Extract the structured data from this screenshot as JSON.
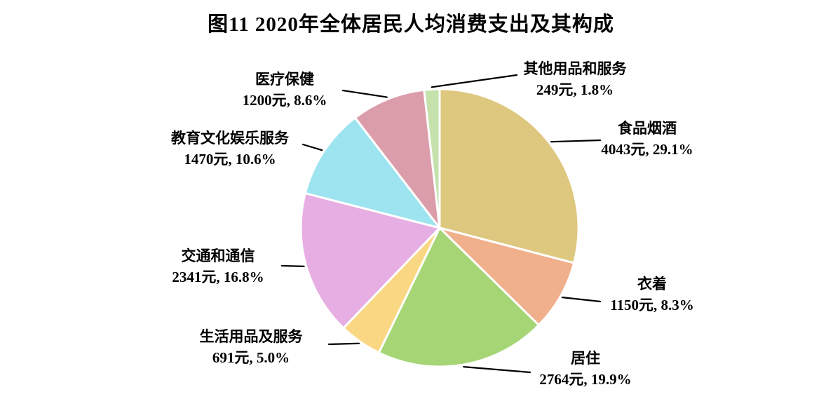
{
  "title": "图11 2020年全体居民人均消费支出及其构成",
  "chart_data": {
    "type": "pie",
    "title": "图11 2020年全体居民人均消费支出及其构成",
    "unit": "元",
    "total_value": 13908,
    "direction": "clockwise",
    "start_angle_deg": 0,
    "legend": "none",
    "label_format": "{value}元, {pct}%",
    "slices": [
      {
        "name": "食品烟酒",
        "value": 4043,
        "pct": 29.1,
        "label": "4043元, 29.1%",
        "color": "#dec77e"
      },
      {
        "name": "衣着",
        "value": 1150,
        "pct": 8.3,
        "label": "1150元, 8.3%",
        "color": "#f0b08b"
      },
      {
        "name": "居住",
        "value": 2764,
        "pct": 19.9,
        "label": "2764元, 19.9%",
        "color": "#a6d576"
      },
      {
        "name": "生活用品及服务",
        "value": 691,
        "pct": 5.0,
        "label": "691元, 5.0%",
        "color": "#fad883"
      },
      {
        "name": "交通和通信",
        "value": 2341,
        "pct": 16.8,
        "label": "2341元, 16.8%",
        "color": "#e6aee2"
      },
      {
        "name": "教育文化娱乐服务",
        "value": 1470,
        "pct": 10.6,
        "label": "1470元, 10.6%",
        "color": "#9de4f0"
      },
      {
        "name": "医疗保健",
        "value": 1200,
        "pct": 8.6,
        "label": "1200元, 8.6%",
        "color": "#dc9daa"
      },
      {
        "name": "其他用品和服务",
        "value": 249,
        "pct": 1.8,
        "label": "249元, 1.8%",
        "color": "#c5e1ac"
      }
    ],
    "colors": {
      "slice_border": "#ffffff",
      "leader_line": "#000000",
      "text": "#000000",
      "background": "#ffffff"
    }
  }
}
